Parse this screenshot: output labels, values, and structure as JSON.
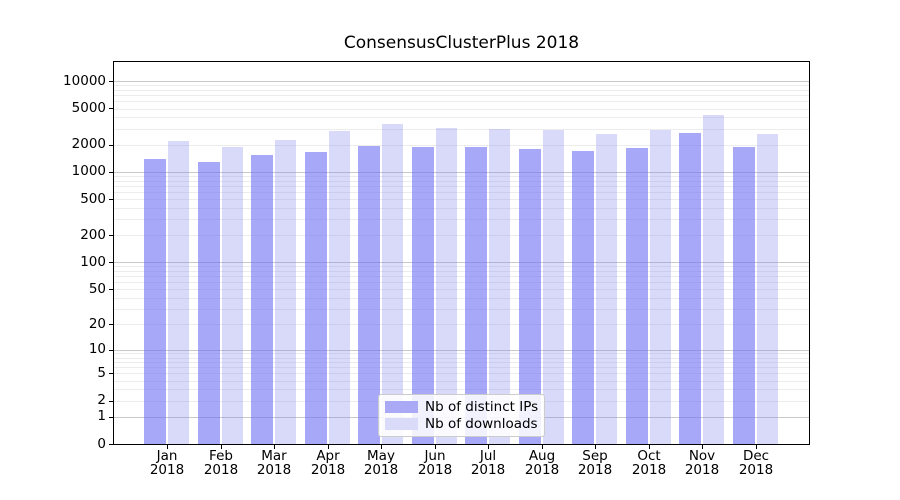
{
  "title": "ConsensusClusterPlus 2018",
  "chart_data": {
    "type": "bar",
    "title": "ConsensusClusterPlus 2018",
    "categories": [
      "Jan",
      "Feb",
      "Mar",
      "Apr",
      "May",
      "Jun",
      "Jul",
      "Aug",
      "Sep",
      "Oct",
      "Nov",
      "Dec"
    ],
    "year": "2018",
    "series": [
      {
        "name": "Nb of distinct IPs",
        "color": "#a9a9f6",
        "fill": "rgba(112,112,243,0.61)",
        "values": [
          1400,
          1300,
          1550,
          1650,
          1950,
          1900,
          1900,
          1800,
          1700,
          1850,
          2700,
          1900
        ]
      },
      {
        "name": "Nb of downloads",
        "color": "#dadaf9",
        "fill": "rgba(128,128,240,0.30)",
        "values": [
          2200,
          1900,
          2250,
          2800,
          3400,
          3050,
          2950,
          2900,
          2600,
          2900,
          4200,
          2650
        ]
      }
    ],
    "yscale": "log1p",
    "yticks": [
      0,
      1,
      2,
      5,
      10,
      20,
      50,
      100,
      200,
      500,
      1000,
      2000,
      5000,
      10000
    ],
    "ylim": [
      0,
      16900
    ],
    "xlabel": "",
    "ylabel": "",
    "grid": true,
    "legend_position": "bottom-center"
  },
  "grid_colors": {
    "major": "#c9c9c9",
    "minor": "#ececec"
  }
}
